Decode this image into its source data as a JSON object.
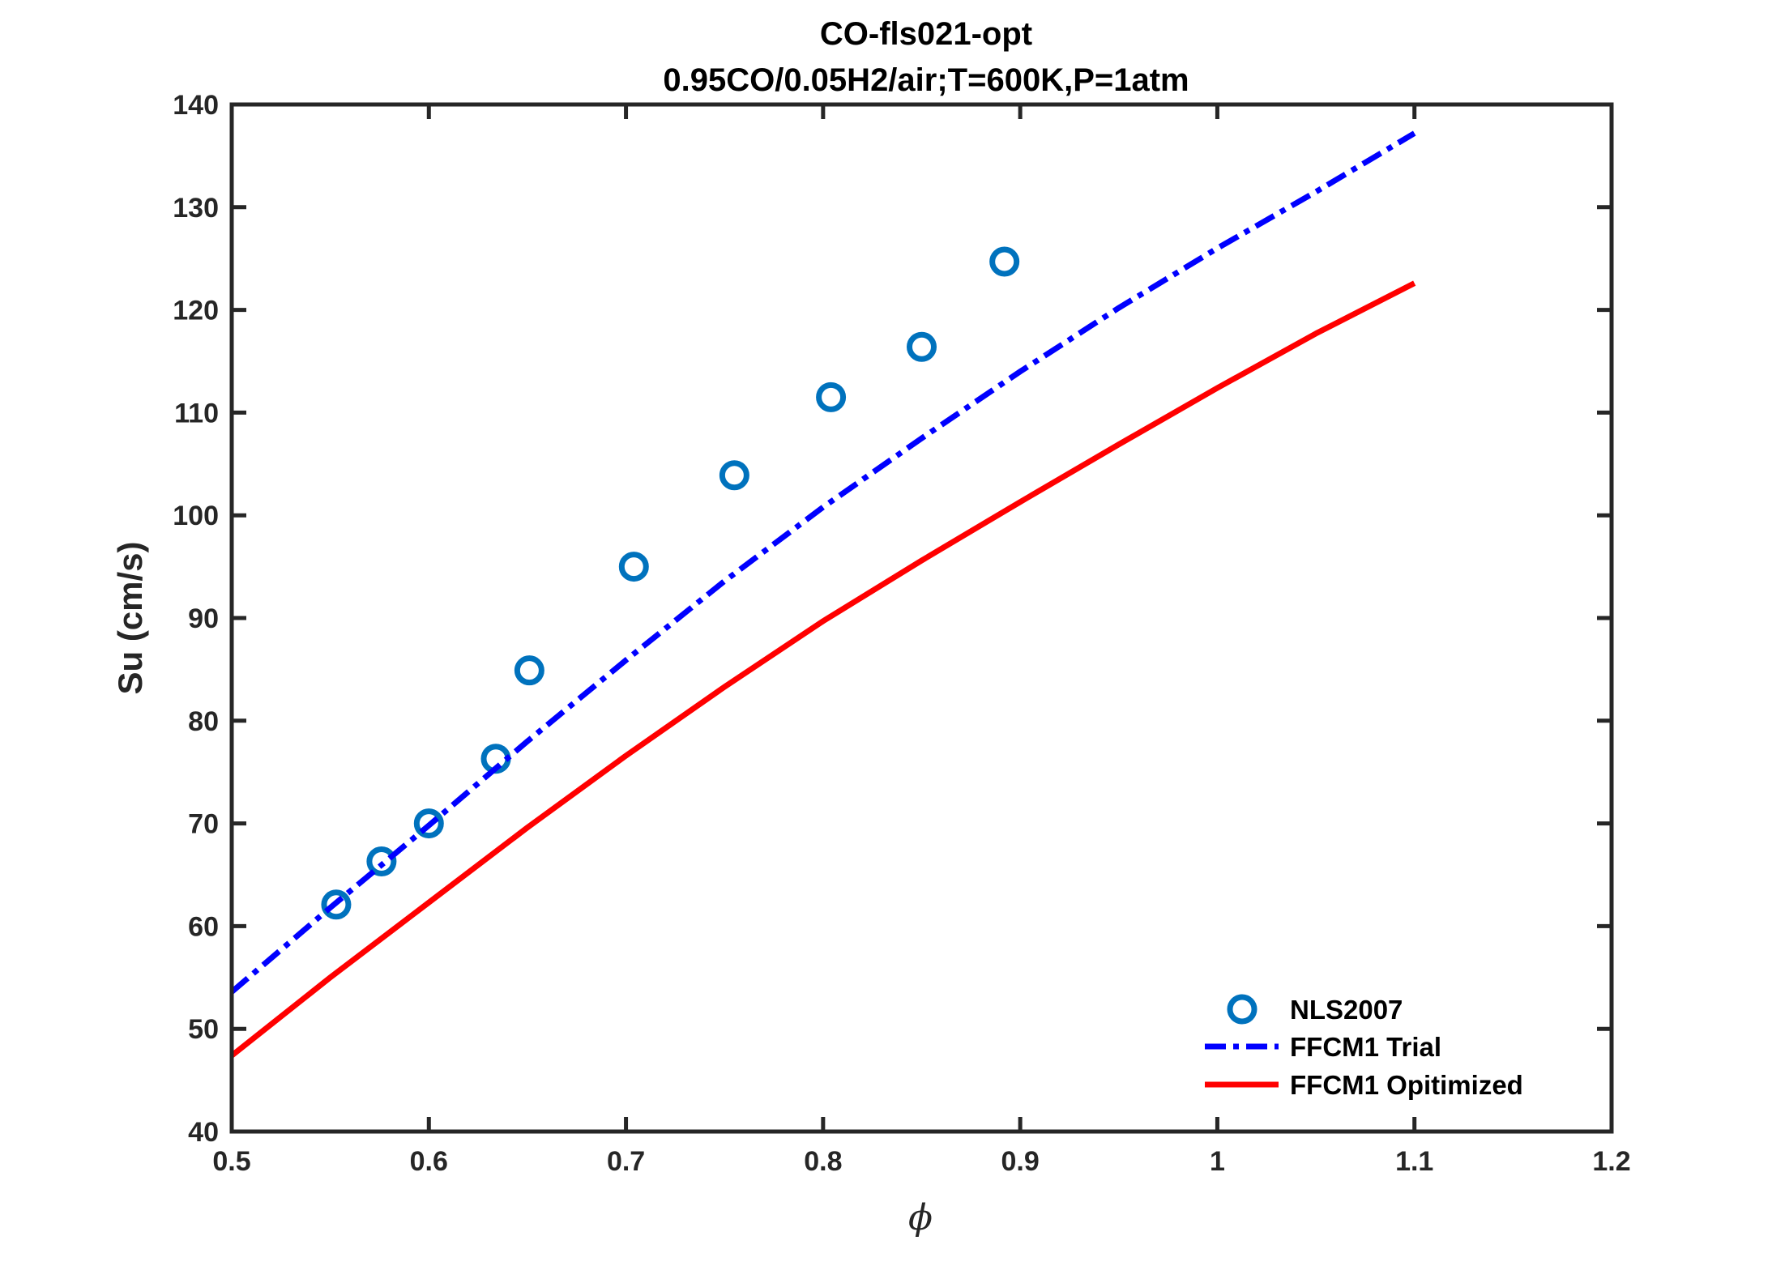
{
  "chart_data": {
    "type": "line",
    "title": "CO-fls021-opt",
    "subtitle": "0.95CO/0.05H2/air;T=600K,P=1atm",
    "xlabel": "ϕ",
    "ylabel": "Su (cm/s)",
    "xlim": [
      0.5,
      1.2
    ],
    "ylim": [
      40,
      140
    ],
    "xticks": [
      0.5,
      0.6,
      0.7,
      0.8,
      0.9,
      1.0,
      1.1,
      1.2
    ],
    "xtick_labels": [
      "0.5",
      "0.6",
      "0.7",
      "0.8",
      "0.9",
      "1",
      "1.1",
      "1.2"
    ],
    "yticks": [
      40,
      50,
      60,
      70,
      80,
      90,
      100,
      110,
      120,
      130,
      140
    ],
    "ytick_labels": [
      "40",
      "50",
      "60",
      "70",
      "80",
      "90",
      "100",
      "110",
      "120",
      "130",
      "140"
    ],
    "grid": false,
    "legend_position": "bottom-right",
    "series": [
      {
        "name": "NLS2007",
        "style": "markers",
        "marker": "circle",
        "color": "#0072BD",
        "x": [
          0.553,
          0.576,
          0.6,
          0.634,
          0.651,
          0.704,
          0.755,
          0.804,
          0.85,
          0.892
        ],
        "y": [
          62.1,
          66.3,
          70.0,
          76.3,
          84.9,
          95.0,
          103.9,
          111.5,
          116.4,
          124.7
        ]
      },
      {
        "name": "FFCM1 Trial",
        "style": "dash-dot",
        "color": "#0000FF",
        "x": [
          0.5,
          0.55,
          0.6,
          0.65,
          0.7,
          0.75,
          0.8,
          0.85,
          0.9,
          0.95,
          1.0,
          1.05,
          1.1
        ],
        "y": [
          53.6,
          61.8,
          69.8,
          78.0,
          85.9,
          93.6,
          100.8,
          107.5,
          114.0,
          120.2,
          126.0,
          131.5,
          137.2
        ]
      },
      {
        "name": "FFCM1 Opitimized",
        "style": "solid",
        "color": "#FF0000",
        "x": [
          0.5,
          0.55,
          0.6,
          0.65,
          0.7,
          0.75,
          0.8,
          0.85,
          0.9,
          0.95,
          1.0,
          1.05,
          1.1
        ],
        "y": [
          47.4,
          55.0,
          62.3,
          69.6,
          76.6,
          83.3,
          89.7,
          95.6,
          101.3,
          106.9,
          112.4,
          117.7,
          122.6
        ]
      }
    ]
  }
}
